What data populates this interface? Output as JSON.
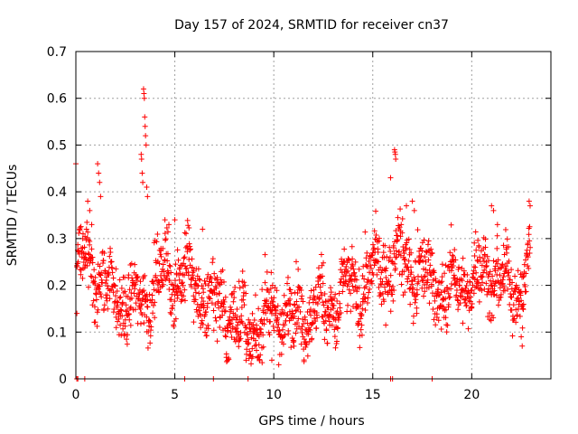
{
  "chart_data": {
    "type": "scatter",
    "title": "Day 157 of 2024, SRMTID for receiver cn37",
    "xlabel": "GPS time / hours",
    "ylabel": "SRMTID / TECUs",
    "xlim": [
      0,
      24
    ],
    "ylim": [
      0,
      0.7
    ],
    "xticks": [
      0,
      5,
      10,
      15,
      20
    ],
    "yticks": [
      0,
      0.1,
      0.2,
      0.3,
      0.4,
      0.5,
      0.6,
      0.7
    ],
    "grid": true,
    "marker": "+",
    "color": "#ff0000",
    "series": [
      {
        "name": "SRMTID",
        "trend": [
          [
            0.0,
            0.22
          ],
          [
            0.5,
            0.27
          ],
          [
            1.0,
            0.22
          ],
          [
            1.5,
            0.19
          ],
          [
            2.0,
            0.18
          ],
          [
            2.5,
            0.17
          ],
          [
            3.0,
            0.15
          ],
          [
            3.5,
            0.18
          ],
          [
            4.0,
            0.2
          ],
          [
            4.5,
            0.22
          ],
          [
            5.0,
            0.23
          ],
          [
            5.5,
            0.22
          ],
          [
            6.0,
            0.2
          ],
          [
            6.5,
            0.17
          ],
          [
            7.0,
            0.16
          ],
          [
            7.5,
            0.15
          ],
          [
            8.0,
            0.13
          ],
          [
            8.5,
            0.11
          ],
          [
            9.0,
            0.1
          ],
          [
            9.5,
            0.12
          ],
          [
            10.0,
            0.14
          ],
          [
            10.5,
            0.14
          ],
          [
            11.0,
            0.13
          ],
          [
            11.5,
            0.14
          ],
          [
            12.0,
            0.15
          ],
          [
            12.5,
            0.15
          ],
          [
            13.0,
            0.16
          ],
          [
            13.5,
            0.18
          ],
          [
            14.0,
            0.19
          ],
          [
            14.5,
            0.2
          ],
          [
            15.0,
            0.22
          ],
          [
            15.5,
            0.24
          ],
          [
            16.0,
            0.25
          ],
          [
            16.5,
            0.25
          ],
          [
            17.0,
            0.24
          ],
          [
            17.5,
            0.22
          ],
          [
            18.0,
            0.21
          ],
          [
            18.5,
            0.19
          ],
          [
            19.0,
            0.19
          ],
          [
            19.5,
            0.2
          ],
          [
            20.0,
            0.21
          ],
          [
            20.5,
            0.22
          ],
          [
            21.0,
            0.23
          ],
          [
            21.5,
            0.21
          ],
          [
            22.0,
            0.19
          ],
          [
            22.5,
            0.2
          ],
          [
            23.0,
            0.27
          ]
        ],
        "spread": 0.05,
        "outliers": [
          [
            0.0,
            0.46
          ],
          [
            0.05,
            0.14
          ],
          [
            0.35,
            0.3
          ],
          [
            0.6,
            0.38
          ],
          [
            0.7,
            0.36
          ],
          [
            0.8,
            0.33
          ],
          [
            1.1,
            0.46
          ],
          [
            1.15,
            0.44
          ],
          [
            1.2,
            0.42
          ],
          [
            1.25,
            0.39
          ],
          [
            3.3,
            0.48
          ],
          [
            3.32,
            0.47
          ],
          [
            3.35,
            0.44
          ],
          [
            3.38,
            0.42
          ],
          [
            3.42,
            0.62
          ],
          [
            3.44,
            0.61
          ],
          [
            3.46,
            0.6
          ],
          [
            3.48,
            0.56
          ],
          [
            3.5,
            0.54
          ],
          [
            3.52,
            0.52
          ],
          [
            3.55,
            0.5
          ],
          [
            3.58,
            0.41
          ],
          [
            3.62,
            0.39
          ],
          [
            4.5,
            0.34
          ],
          [
            4.7,
            0.33
          ],
          [
            5.0,
            0.34
          ],
          [
            6.4,
            0.32
          ],
          [
            8.6,
            0.04
          ],
          [
            8.8,
            0.05
          ],
          [
            9.9,
            0.04
          ],
          [
            15.9,
            0.43
          ],
          [
            16.1,
            0.49
          ],
          [
            16.12,
            0.485
          ],
          [
            16.14,
            0.48
          ],
          [
            16.16,
            0.47
          ],
          [
            16.7,
            0.37
          ],
          [
            17.0,
            0.38
          ],
          [
            17.1,
            0.36
          ],
          [
            21.0,
            0.37
          ],
          [
            21.1,
            0.36
          ],
          [
            21.3,
            0.33
          ],
          [
            22.5,
            0.09
          ],
          [
            22.55,
            0.07
          ],
          [
            22.9,
            0.38
          ],
          [
            22.95,
            0.37
          ]
        ],
        "zero_points": [
          0.05,
          0.1,
          0.45,
          5.5,
          6.95,
          8.7,
          15.9,
          16.0,
          18.0
        ]
      }
    ]
  }
}
